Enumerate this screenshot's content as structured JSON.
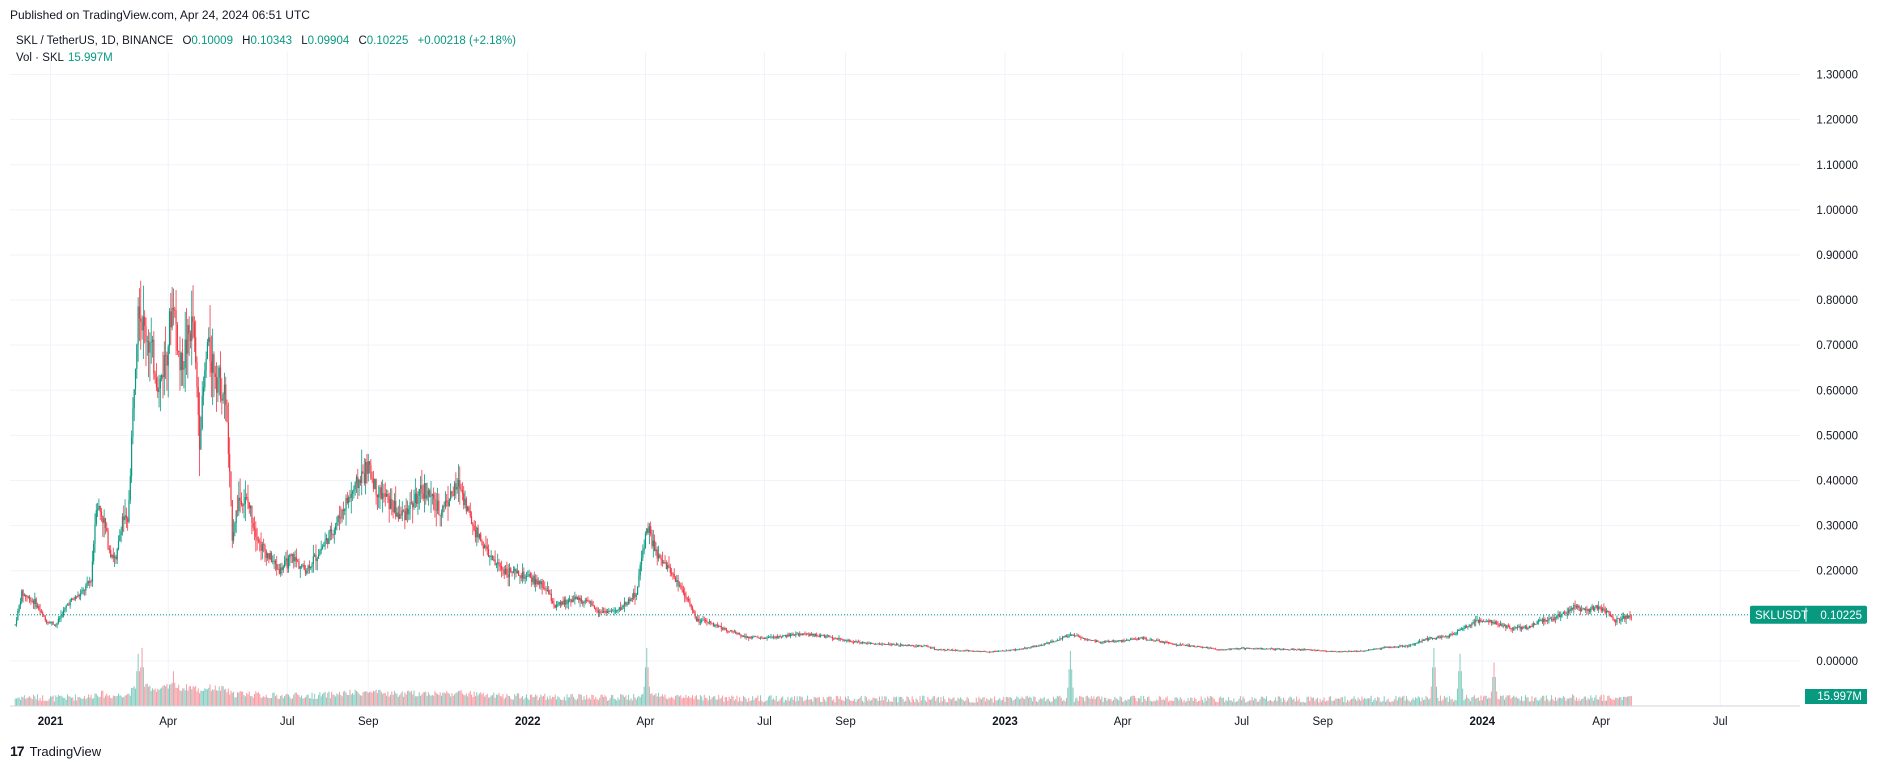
{
  "header": {
    "published": "Published on TradingView.com, Apr 24, 2024 06:51 UTC"
  },
  "legend": {
    "symbol": "SKL / TetherUS, 1D, BINANCE",
    "o_label": "O",
    "o": "0.10009",
    "h_label": "H",
    "h": "0.10343",
    "l_label": "L",
    "l": "0.09904",
    "c_label": "C",
    "c": "0.10225",
    "change": "+0.00218 (+2.18%)"
  },
  "volume_legend": {
    "label": "Vol · SKL",
    "value": "15.997M"
  },
  "price_tag": {
    "symbol": "SKLUSDT",
    "value": "0.10225"
  },
  "volume_tag": {
    "value": "15.997M"
  },
  "footer": {
    "brand": "TradingView",
    "logo": "17"
  },
  "colors": {
    "up": "#089981",
    "down": "#F23645",
    "grid": "#F0F3FA",
    "text": "#131722"
  },
  "chart_data": {
    "type": "candlestick",
    "title": "SKL / TetherUS, 1D, BINANCE",
    "y_ticks": [
      "1.30000",
      "1.20000",
      "1.10000",
      "1.00000",
      "0.90000",
      "0.80000",
      "0.70000",
      "0.60000",
      "0.50000",
      "0.40000",
      "0.30000",
      "0.20000",
      "0.10000",
      "0.00000"
    ],
    "y_tick_values": [
      1.3,
      1.2,
      1.1,
      1.0,
      0.9,
      0.8,
      0.7,
      0.6,
      0.5,
      0.4,
      0.3,
      0.2,
      0.1,
      0.0
    ],
    "ylim": [
      -0.1,
      1.35
    ],
    "x_ticks": [
      "2021",
      "Apr",
      "Jul",
      "Sep",
      "2022",
      "Apr",
      "Jul",
      "Sep",
      "2023",
      "Apr",
      "Jul",
      "Sep",
      "2024",
      "Apr",
      "Jul"
    ],
    "x_tick_dates": [
      "2021-01-01",
      "2021-04-01",
      "2021-07-01",
      "2021-09-01",
      "2022-01-01",
      "2022-04-01",
      "2022-07-01",
      "2022-09-01",
      "2023-01-01",
      "2023-04-01",
      "2023-07-01",
      "2023-09-01",
      "2024-01-01",
      "2024-04-01",
      "2024-07-01"
    ],
    "x_range": [
      "2020-12-01",
      "2024-08-31"
    ],
    "grid": true,
    "last_close": 0.10225,
    "price_path": [
      [
        "2020-12-05",
        0.08
      ],
      [
        "2020-12-10",
        0.15
      ],
      [
        "2020-12-20",
        0.13
      ],
      [
        "2020-12-28",
        0.09
      ],
      [
        "2021-01-05",
        0.08
      ],
      [
        "2021-01-15",
        0.13
      ],
      [
        "2021-01-25",
        0.15
      ],
      [
        "2021-02-01",
        0.18
      ],
      [
        "2021-02-05",
        0.35
      ],
      [
        "2021-02-10",
        0.32
      ],
      [
        "2021-02-15",
        0.25
      ],
      [
        "2021-02-20",
        0.22
      ],
      [
        "2021-02-25",
        0.32
      ],
      [
        "2021-03-01",
        0.3
      ],
      [
        "2021-03-05",
        0.55
      ],
      [
        "2021-03-09",
        0.82
      ],
      [
        "2021-03-12",
        0.75
      ],
      [
        "2021-03-18",
        0.7
      ],
      [
        "2021-03-25",
        0.6
      ],
      [
        "2021-04-01",
        0.72
      ],
      [
        "2021-04-05",
        0.8
      ],
      [
        "2021-04-10",
        0.65
      ],
      [
        "2021-04-15",
        0.7
      ],
      [
        "2021-04-20",
        0.75
      ],
      [
        "2021-04-25",
        0.5
      ],
      [
        "2021-05-01",
        0.7
      ],
      [
        "2021-05-10",
        0.62
      ],
      [
        "2021-05-15",
        0.58
      ],
      [
        "2021-05-20",
        0.28
      ],
      [
        "2021-05-25",
        0.36
      ],
      [
        "2021-06-01",
        0.35
      ],
      [
        "2021-06-10",
        0.26
      ],
      [
        "2021-06-20",
        0.22
      ],
      [
        "2021-06-25",
        0.2
      ],
      [
        "2021-07-05",
        0.23
      ],
      [
        "2021-07-15",
        0.2
      ],
      [
        "2021-07-25",
        0.24
      ],
      [
        "2021-08-05",
        0.29
      ],
      [
        "2021-08-15",
        0.35
      ],
      [
        "2021-08-25",
        0.4
      ],
      [
        "2021-09-01",
        0.43
      ],
      [
        "2021-09-07",
        0.38
      ],
      [
        "2021-09-15",
        0.36
      ],
      [
        "2021-09-25",
        0.32
      ],
      [
        "2021-10-05",
        0.35
      ],
      [
        "2021-10-15",
        0.38
      ],
      [
        "2021-10-25",
        0.33
      ],
      [
        "2021-11-01",
        0.36
      ],
      [
        "2021-11-10",
        0.39
      ],
      [
        "2021-11-20",
        0.3
      ],
      [
        "2021-12-05",
        0.22
      ],
      [
        "2021-12-15",
        0.2
      ],
      [
        "2021-12-25",
        0.19
      ],
      [
        "2022-01-05",
        0.18
      ],
      [
        "2022-01-15",
        0.16
      ],
      [
        "2022-01-22",
        0.12
      ],
      [
        "2022-02-05",
        0.14
      ],
      [
        "2022-02-15",
        0.13
      ],
      [
        "2022-02-25",
        0.11
      ],
      [
        "2022-03-10",
        0.11
      ],
      [
        "2022-03-25",
        0.15
      ],
      [
        "2022-04-02",
        0.3
      ],
      [
        "2022-04-10",
        0.23
      ],
      [
        "2022-04-20",
        0.2
      ],
      [
        "2022-05-01",
        0.15
      ],
      [
        "2022-05-10",
        0.09
      ],
      [
        "2022-05-20",
        0.085
      ],
      [
        "2022-06-01",
        0.07
      ],
      [
        "2022-06-15",
        0.055
      ],
      [
        "2022-07-01",
        0.05
      ],
      [
        "2022-07-15",
        0.055
      ],
      [
        "2022-08-01",
        0.06
      ],
      [
        "2022-08-15",
        0.055
      ],
      [
        "2022-09-01",
        0.045
      ],
      [
        "2022-09-15",
        0.04
      ],
      [
        "2022-10-01",
        0.037
      ],
      [
        "2022-10-15",
        0.035
      ],
      [
        "2022-11-01",
        0.033
      ],
      [
        "2022-11-10",
        0.025
      ],
      [
        "2022-12-01",
        0.023
      ],
      [
        "2022-12-20",
        0.02
      ],
      [
        "2023-01-10",
        0.025
      ],
      [
        "2023-01-25",
        0.033
      ],
      [
        "2023-02-10",
        0.045
      ],
      [
        "2023-02-20",
        0.06
      ],
      [
        "2023-03-01",
        0.05
      ],
      [
        "2023-03-15",
        0.042
      ],
      [
        "2023-04-01",
        0.045
      ],
      [
        "2023-04-15",
        0.05
      ],
      [
        "2023-05-01",
        0.042
      ],
      [
        "2023-05-15",
        0.035
      ],
      [
        "2023-06-01",
        0.03
      ],
      [
        "2023-06-15",
        0.025
      ],
      [
        "2023-07-01",
        0.028
      ],
      [
        "2023-07-15",
        0.027
      ],
      [
        "2023-08-01",
        0.026
      ],
      [
        "2023-08-20",
        0.025
      ],
      [
        "2023-09-10",
        0.021
      ],
      [
        "2023-10-01",
        0.022
      ],
      [
        "2023-10-20",
        0.03
      ],
      [
        "2023-11-05",
        0.033
      ],
      [
        "2023-11-20",
        0.05
      ],
      [
        "2023-12-01",
        0.053
      ],
      [
        "2023-12-10",
        0.06
      ],
      [
        "2023-12-25",
        0.085
      ],
      [
        "2024-01-05",
        0.09
      ],
      [
        "2024-01-15",
        0.08
      ],
      [
        "2024-01-25",
        0.072
      ],
      [
        "2024-02-05",
        0.075
      ],
      [
        "2024-02-15",
        0.09
      ],
      [
        "2024-02-25",
        0.095
      ],
      [
        "2024-03-05",
        0.11
      ],
      [
        "2024-03-12",
        0.12
      ],
      [
        "2024-03-20",
        0.11
      ],
      [
        "2024-03-28",
        0.12
      ],
      [
        "2024-04-05",
        0.11
      ],
      [
        "2024-04-12",
        0.09
      ],
      [
        "2024-04-18",
        0.095
      ],
      [
        "2024-04-24",
        0.10225
      ]
    ],
    "volume_spikes": [
      [
        "2021-03-09",
        0.9
      ],
      [
        "2021-03-12",
        1.0
      ],
      [
        "2021-04-05",
        0.6
      ],
      [
        "2022-04-02",
        1.0
      ],
      [
        "2023-02-20",
        0.95
      ],
      [
        "2023-11-25",
        1.0
      ],
      [
        "2023-12-15",
        0.9
      ],
      [
        "2024-01-10",
        0.75
      ]
    ]
  }
}
